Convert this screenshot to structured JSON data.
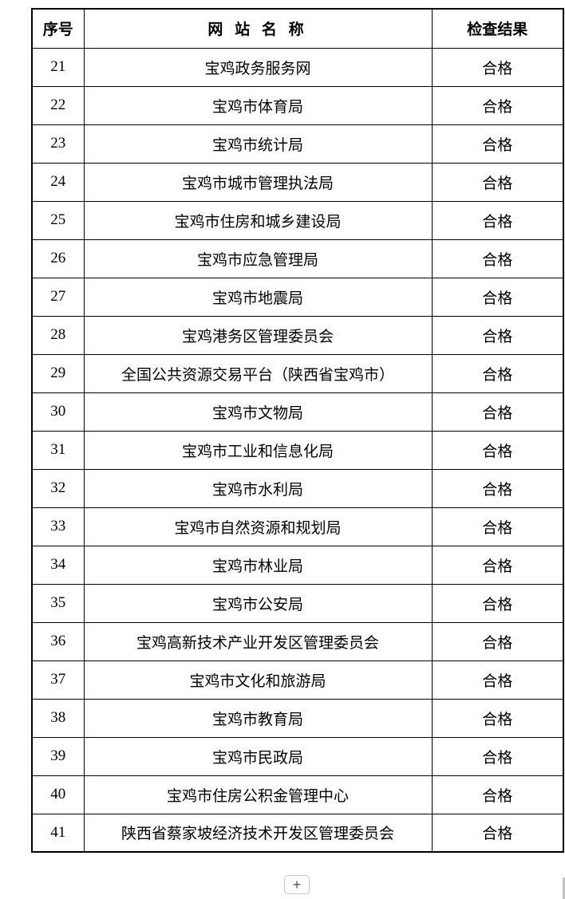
{
  "table": {
    "headers": [
      {
        "label": "序号"
      },
      {
        "label": "网 站 名 称"
      },
      {
        "label": "检查结果"
      }
    ],
    "rows": [
      {
        "no": "21",
        "name": "宝鸡政务服务网",
        "result": "合格"
      },
      {
        "no": "22",
        "name": "宝鸡市体育局",
        "result": "合格"
      },
      {
        "no": "23",
        "name": "宝鸡市统计局",
        "result": "合格"
      },
      {
        "no": "24",
        "name": "宝鸡市城市管理执法局",
        "result": "合格"
      },
      {
        "no": "25",
        "name": "宝鸡市住房和城乡建设局",
        "result": "合格"
      },
      {
        "no": "26",
        "name": "宝鸡市应急管理局",
        "result": "合格"
      },
      {
        "no": "27",
        "name": "宝鸡市地震局",
        "result": "合格"
      },
      {
        "no": "28",
        "name": "宝鸡港务区管理委员会",
        "result": "合格"
      },
      {
        "no": "29",
        "name": "全国公共资源交易平台（陕西省宝鸡市）",
        "result": "合格"
      },
      {
        "no": "30",
        "name": "宝鸡市文物局",
        "result": "合格"
      },
      {
        "no": "31",
        "name": "宝鸡市工业和信息化局",
        "result": "合格"
      },
      {
        "no": "32",
        "name": "宝鸡市水利局",
        "result": "合格"
      },
      {
        "no": "33",
        "name": "宝鸡市自然资源和规划局",
        "result": "合格"
      },
      {
        "no": "34",
        "name": "宝鸡市林业局",
        "result": "合格"
      },
      {
        "no": "35",
        "name": "宝鸡市公安局",
        "result": "合格"
      },
      {
        "no": "36",
        "name": "宝鸡高新技术产业开发区管理委员会",
        "result": "合格"
      },
      {
        "no": "37",
        "name": "宝鸡市文化和旅游局",
        "result": "合格"
      },
      {
        "no": "38",
        "name": "宝鸡市教育局",
        "result": "合格"
      },
      {
        "no": "39",
        "name": "宝鸡市民政局",
        "result": "合格"
      },
      {
        "no": "40",
        "name": "宝鸡市住房公积金管理中心",
        "result": "合格"
      },
      {
        "no": "41",
        "name": "陕西省蔡家坡经济技术开发区管理委员会",
        "result": "合格"
      }
    ]
  },
  "controls": {
    "plus_label": "+"
  },
  "colors": {
    "border": "#000000",
    "text": "#000000",
    "plus_border": "#c9c9c9",
    "plus_text": "#555555",
    "scrollbar": "#c4c4c4",
    "page_bg": "#ffffff"
  }
}
